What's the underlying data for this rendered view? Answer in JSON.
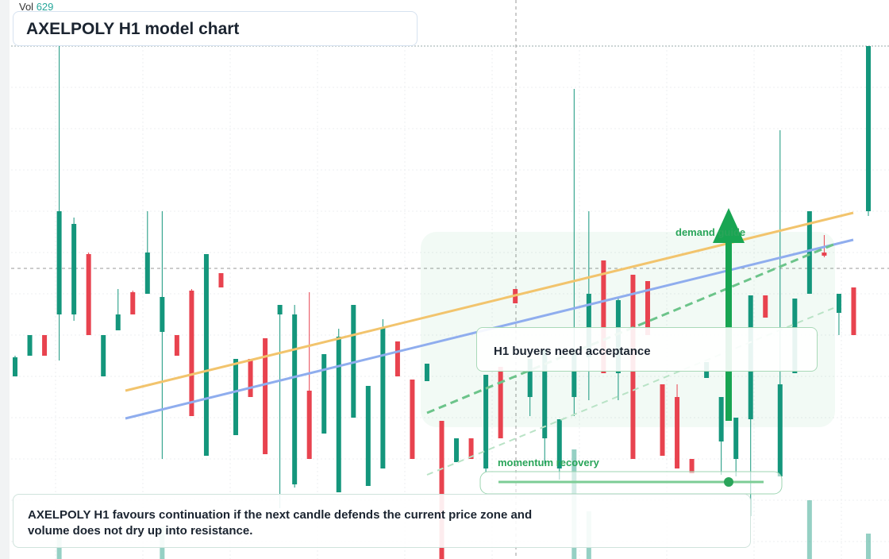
{
  "vol_label": "Vol",
  "vol_value": "629",
  "title": "AXELPOLY H1 model chart",
  "annotations": {
    "guide": "demand guide",
    "acceptance": "H1 buyers need acceptance",
    "momentum": "momentum recovery"
  },
  "footer": "AXELPOLY H1 favours continuation if the next candle defends the current price zone and volume does not dry up into resistance.",
  "chart_data": {
    "type": "candlestick",
    "ylim": [
      0,
      646
    ],
    "up_color": "#14967c",
    "down_color": "#e8434f",
    "volume_color": "rgba(20,150,124,0.45)",
    "open": [
      230,
      256,
      282,
      308,
      308,
      384,
      230,
      288,
      336,
      334,
      286,
      282,
      338,
      130,
      360,
      156,
      252,
      278,
      308,
      94,
      212,
      158,
      84,
      178,
      92,
      114,
      274,
      226,
      224,
      174,
      122,
      152,
      114,
      242,
      340,
      204,
      152,
      114,
      204,
      254,
      376,
      234,
      358,
      350,
      220,
      204,
      126,
      228,
      148,
      126,
      176,
      332,
      104,
      234,
      334,
      386,
      310,
      342,
      438
    ],
    "high": [
      256,
      282,
      282,
      646,
      430,
      386,
      282,
      340,
      338,
      438,
      438,
      282,
      340,
      384,
      360,
      252,
      252,
      278,
      320,
      320,
      336,
      258,
      290,
      320,
      218,
      302,
      274,
      226,
      246,
      174,
      152,
      152,
      232,
      242,
      340,
      252,
      264,
      176,
      592,
      438,
      376,
      330,
      358,
      350,
      220,
      220,
      126,
      248,
      204,
      178,
      332,
      332,
      540,
      328,
      438,
      408,
      334,
      342,
      646
    ],
    "low": [
      230,
      256,
      256,
      250,
      300,
      282,
      230,
      288,
      308,
      334,
      126,
      256,
      180,
      130,
      342,
      156,
      204,
      132,
      64,
      90,
      126,
      158,
      84,
      178,
      92,
      114,
      230,
      126,
      224,
      0,
      122,
      126,
      110,
      152,
      322,
      180,
      120,
      100,
      180,
      200,
      234,
      200,
      126,
      282,
      130,
      114,
      108,
      228,
      106,
      104,
      54,
      304,
      104,
      234,
      334,
      380,
      282,
      282,
      432
    ],
    "close": [
      254,
      282,
      256,
      438,
      422,
      282,
      282,
      308,
      308,
      386,
      330,
      256,
      180,
      384,
      342,
      252,
      204,
      132,
      320,
      308,
      126,
      258,
      280,
      320,
      218,
      292,
      230,
      126,
      246,
      0,
      152,
      126,
      232,
      152,
      322,
      252,
      264,
      176,
      264,
      334,
      234,
      326,
      126,
      282,
      130,
      114,
      108,
      248,
      204,
      178,
      332,
      304,
      220,
      328,
      438,
      382,
      334,
      282,
      646
    ],
    "volume": [
      null,
      null,
      null,
      30,
      null,
      null,
      null,
      null,
      null,
      null,
      40,
      null,
      null,
      null,
      null,
      null,
      null,
      null,
      null,
      null,
      null,
      null,
      null,
      null,
      null,
      null,
      null,
      null,
      null,
      60,
      null,
      null,
      null,
      null,
      null,
      null,
      null,
      null,
      138,
      60,
      null,
      null,
      null,
      null,
      null,
      null,
      null,
      null,
      null,
      null,
      null,
      null,
      null,
      null,
      74,
      null,
      null,
      null,
      32
    ]
  }
}
